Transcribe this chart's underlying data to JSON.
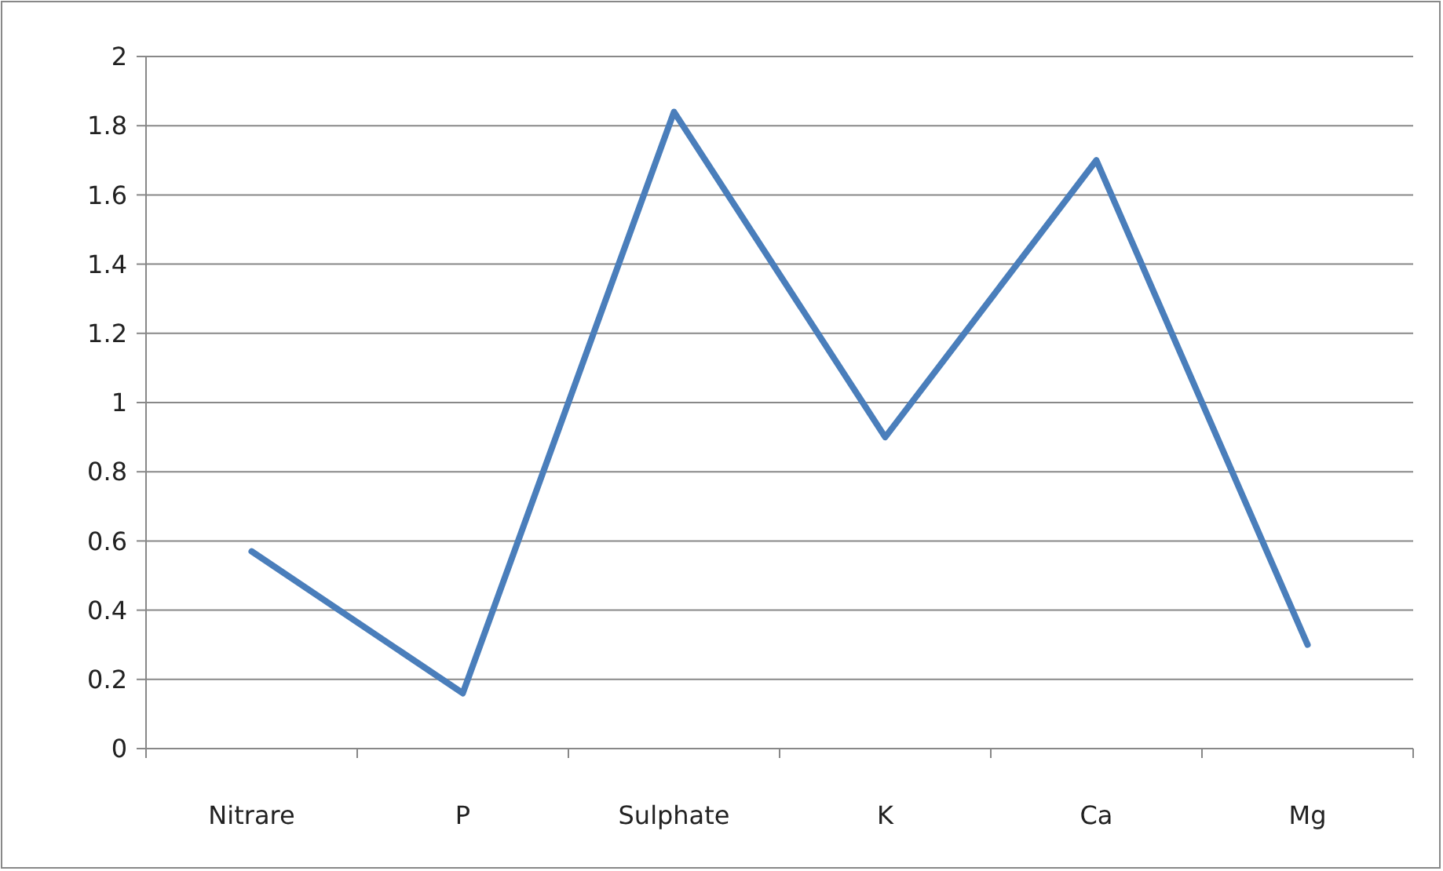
{
  "chart_data": {
    "type": "line",
    "categories": [
      "Nitrare",
      "P",
      "Sulphate",
      "K",
      "Ca",
      "Mg"
    ],
    "series": [
      {
        "color": "#4a7ebb",
        "values": [
          0.57,
          0.16,
          1.84,
          0.9,
          1.7,
          0.3
        ]
      }
    ],
    "ylim": [
      0,
      2
    ],
    "yticks": [
      0,
      0.2,
      0.4,
      0.6,
      0.8,
      1,
      1.2,
      1.4,
      1.6,
      1.8,
      2
    ],
    "grid": "y",
    "marker": "none",
    "line_style": "solid"
  }
}
